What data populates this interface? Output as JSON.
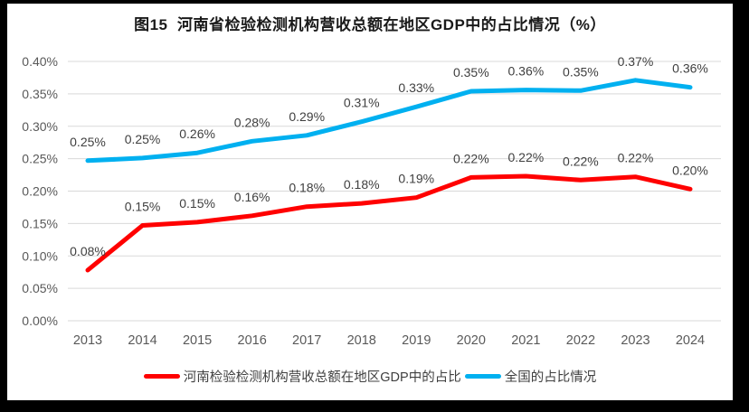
{
  "frame": {
    "background_color": "#000000",
    "chart_background_color": "#FFFFFF"
  },
  "chart_data": {
    "type": "line",
    "title": "图15  河南省检验检测机构营收总额在地区GDP中的占比情况（%）",
    "categories": [
      "2013",
      "2014",
      "2015",
      "2016",
      "2017",
      "2018",
      "2019",
      "2020",
      "2021",
      "2022",
      "2023",
      "2024"
    ],
    "series": [
      {
        "name": "河南检验检测机构营收总额在地区GDP中的占比",
        "color": "#FF0000",
        "values": [
          0.078,
          0.147,
          0.152,
          0.162,
          0.176,
          0.181,
          0.19,
          0.221,
          0.223,
          0.217,
          0.222,
          0.203
        ],
        "labels": [
          "0.08%",
          "0.15%",
          "0.15%",
          "0.16%",
          "0.18%",
          "0.18%",
          "0.19%",
          "0.22%",
          "0.22%",
          "0.22%",
          "0.22%",
          "0.20%"
        ]
      },
      {
        "name": "全国的占比情况",
        "color": "#00B0F0",
        "values": [
          0.247,
          0.251,
          0.259,
          0.277,
          0.286,
          0.307,
          0.33,
          0.354,
          0.356,
          0.355,
          0.371,
          0.36
        ],
        "labels": [
          "0.25%",
          "0.25%",
          "0.26%",
          "0.28%",
          "0.29%",
          "0.31%",
          "0.33%",
          "0.35%",
          "0.36%",
          "0.35%",
          "0.37%",
          "0.36%"
        ]
      }
    ],
    "ylim": [
      0,
      0.4
    ],
    "yticks": {
      "values": [
        0.0,
        0.05,
        0.1,
        0.15,
        0.2,
        0.25,
        0.3,
        0.35,
        0.4
      ],
      "labels": [
        "0.00%",
        "0.05%",
        "0.10%",
        "0.15%",
        "0.20%",
        "0.25%",
        "0.30%",
        "0.35%",
        "0.40%"
      ]
    },
    "grid": true,
    "legend_position": "bottom",
    "colors": {
      "gridline": "#D9D9D9",
      "axis_text": "#595959",
      "data_label_text": "#3f3f3f",
      "title_text": "#1a1a1a"
    }
  }
}
